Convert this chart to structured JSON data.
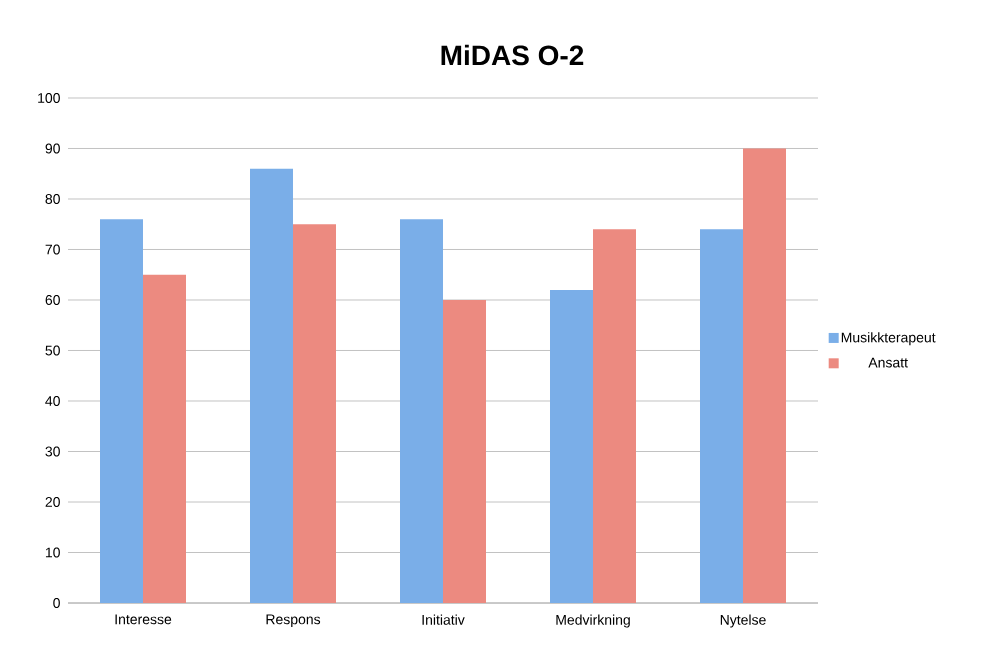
{
  "chart_data": {
    "type": "bar",
    "title": "MiDAS O-2",
    "categories": [
      "Interesse",
      "Respons",
      "Initiativ",
      "Medvirkning",
      "Nytelse"
    ],
    "series": [
      {
        "name": "Musikkterapeut",
        "color": "#7aaee8",
        "values": [
          76,
          86,
          76,
          62,
          74
        ]
      },
      {
        "name": "Ansatt",
        "color": "#ec8a80",
        "values": [
          65,
          75,
          60,
          74,
          90
        ]
      }
    ],
    "ylim": [
      0,
      100
    ],
    "yticks": [
      0,
      10,
      20,
      30,
      40,
      50,
      60,
      70,
      80,
      90,
      100
    ],
    "grid": "y",
    "legend": "right"
  }
}
